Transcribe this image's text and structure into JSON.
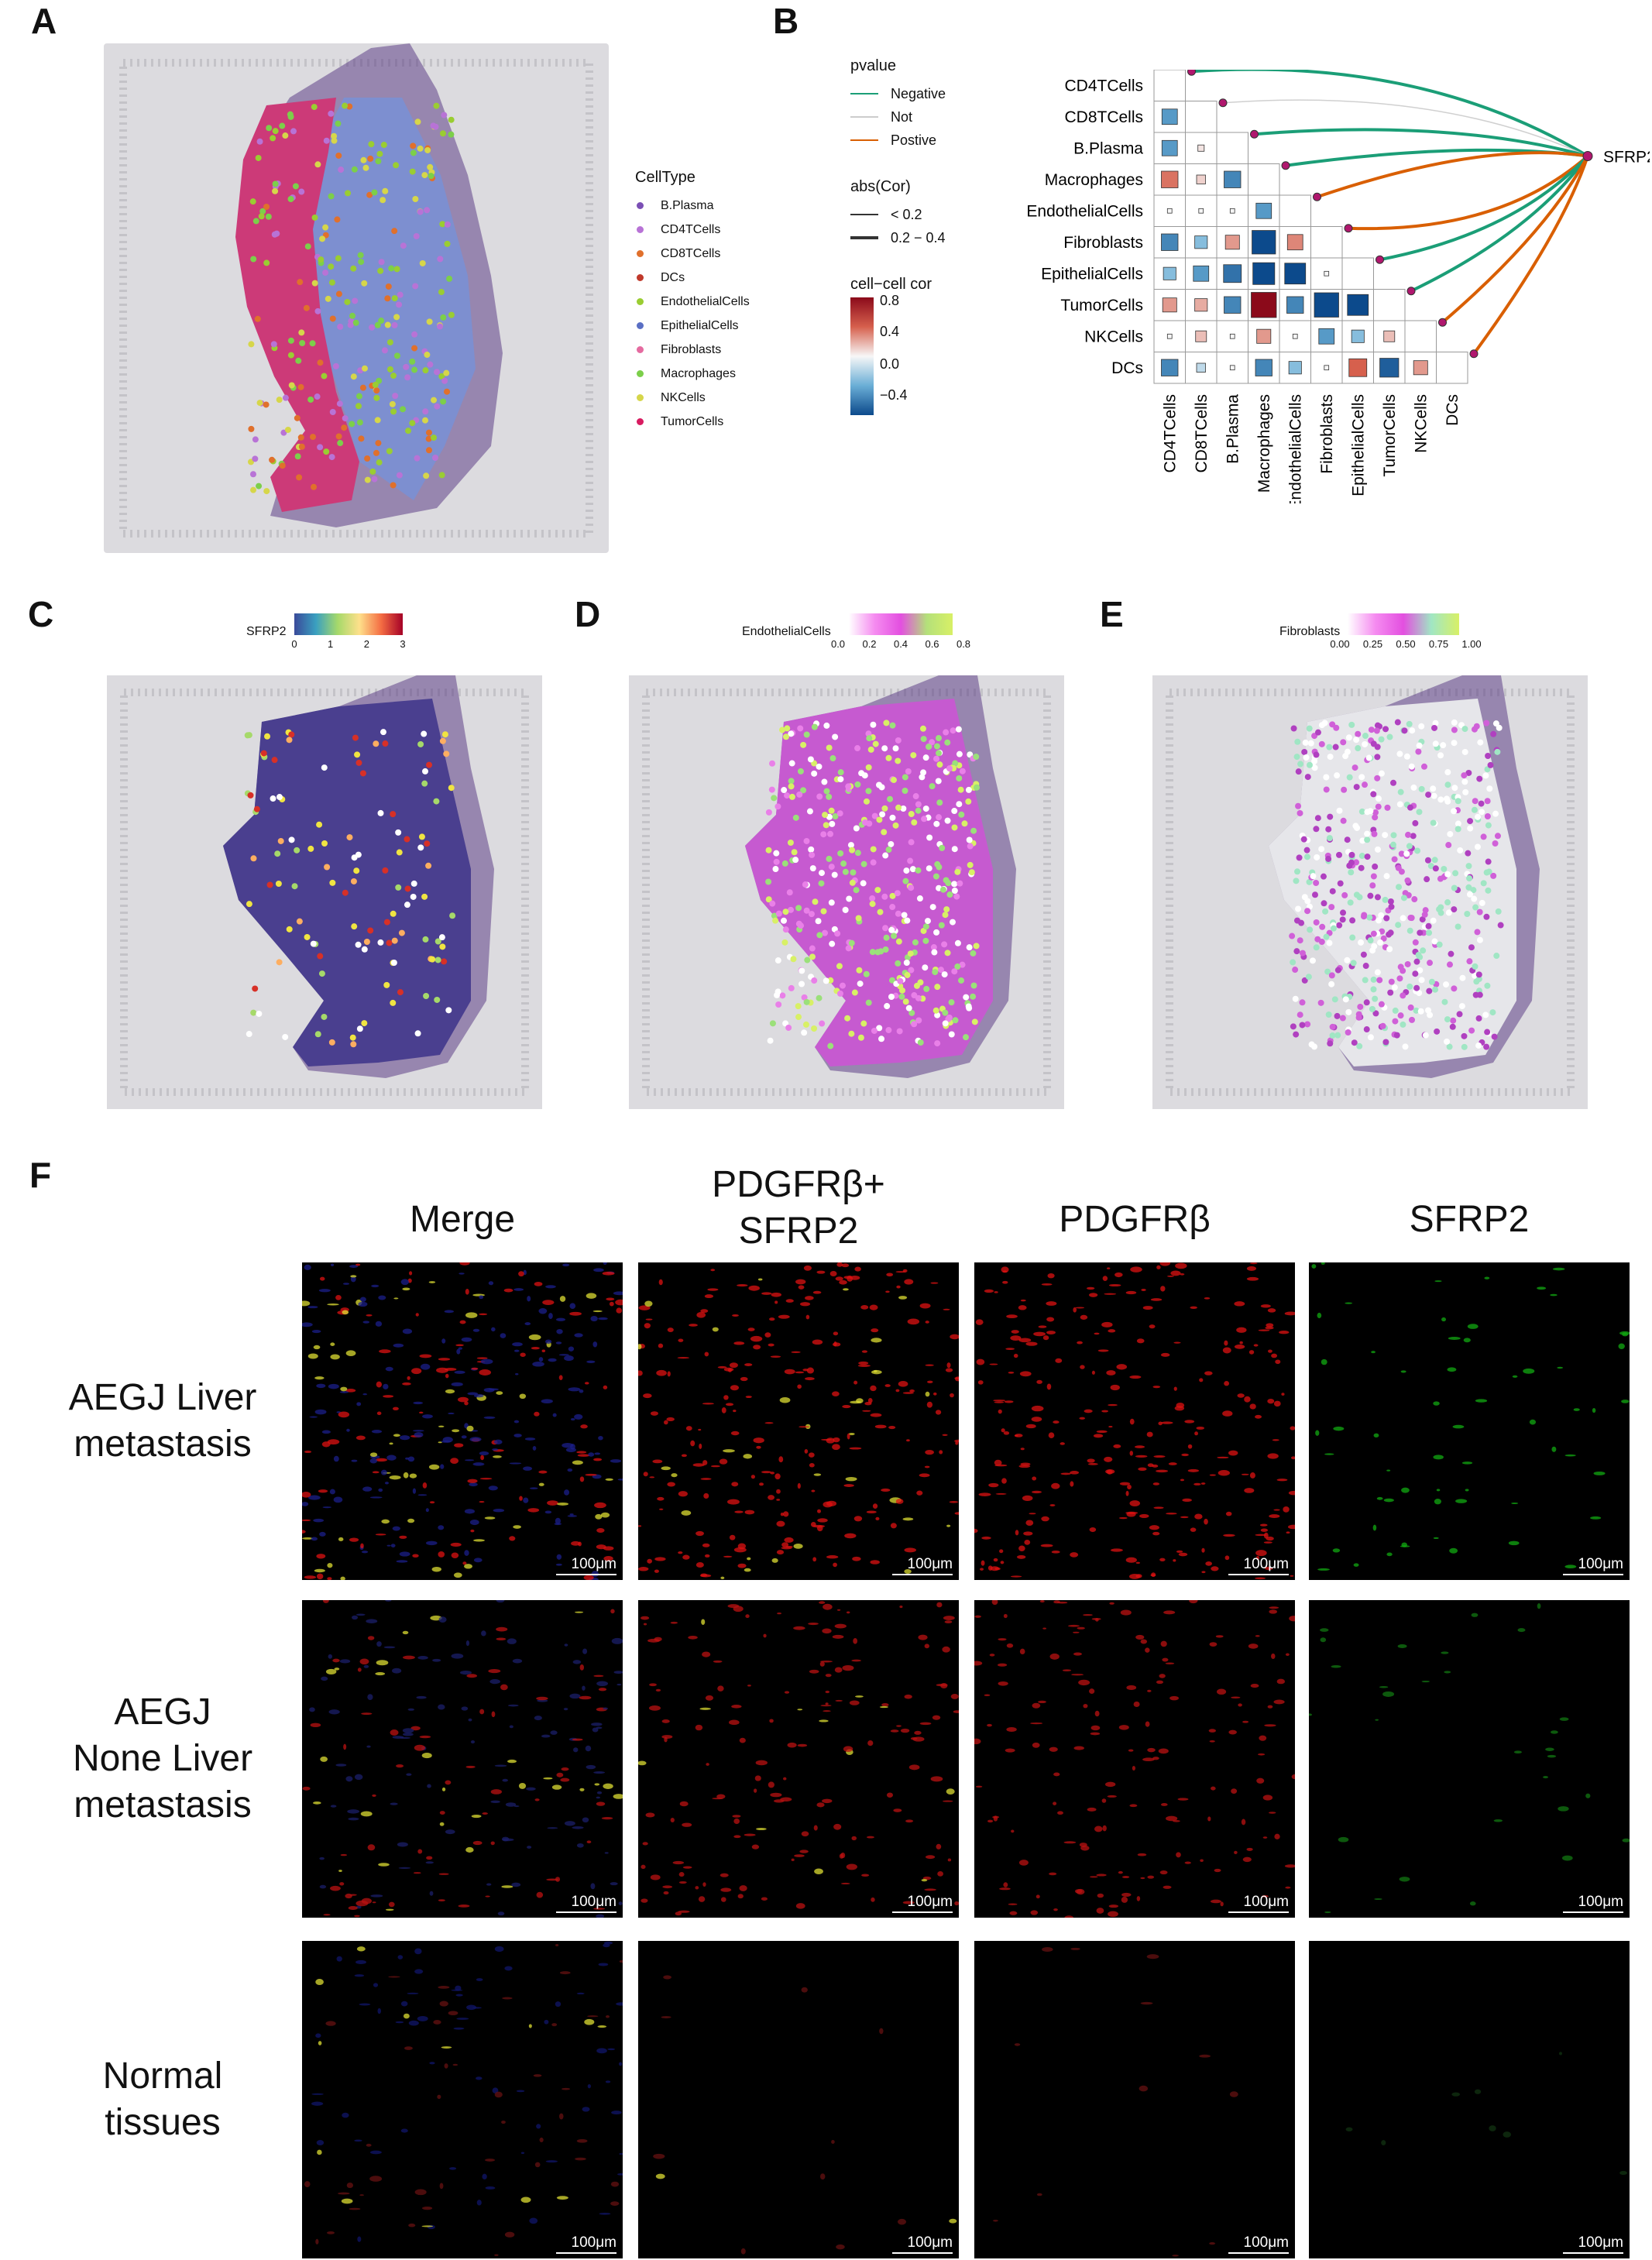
{
  "panels": {
    "A": "A",
    "B": "B",
    "C": "C",
    "D": "D",
    "E": "E",
    "F": "F"
  },
  "panel_a": {
    "legend_title": "CellType",
    "legend": [
      {
        "label": "B.Plasma",
        "color": "#7b4fb5"
      },
      {
        "label": "CD4TCells",
        "color": "#b873d6"
      },
      {
        "label": "CD8TCells",
        "color": "#e0702c"
      },
      {
        "label": "DCs",
        "color": "#c0392b"
      },
      {
        "label": "EndothelialCells",
        "color": "#9acd32"
      },
      {
        "label": "EpithelialCells",
        "color": "#5a6fc4"
      },
      {
        "label": "Fibroblasts",
        "color": "#e56ba0"
      },
      {
        "label": "Macrophages",
        "color": "#7ccf4a"
      },
      {
        "label": "NKCells",
        "color": "#d6d64a"
      },
      {
        "label": "TumorCells",
        "color": "#d81b60"
      }
    ]
  },
  "panel_b": {
    "legend_pvalue_title": "pvalue",
    "legend_pvalue": [
      {
        "label": "Negative",
        "color": "#1b9e77"
      },
      {
        "label": "Not",
        "color": "#cccccc"
      },
      {
        "label": "Postive",
        "color": "#d95f02"
      }
    ],
    "legend_abs_title": "abs(Cor)",
    "legend_abs": [
      "< 0.2",
      "0.2 − 0.4"
    ],
    "legend_cor_title": "cell−cell cor",
    "legend_cor_ticks": [
      "0.8",
      "0.4",
      "0.0",
      "−0.4"
    ],
    "gene": "SFRP2",
    "cells": [
      "CD4TCells",
      "CD8TCells",
      "B.Plasma",
      "Macrophages",
      "EndothelialCells",
      "Fibroblasts",
      "EpithelialCells",
      "TumorCells",
      "NKCells",
      "DCs"
    ]
  },
  "chart_data": {
    "type": "heatmap",
    "rows": [
      "CD4TCells",
      "CD8TCells",
      "B.Plasma",
      "Macrophages",
      "EndothelialCells",
      "Fibroblasts",
      "EpithelialCells",
      "TumorCells",
      "NKCells",
      "DCs"
    ],
    "columns": [
      "CD4TCells",
      "CD8TCells",
      "B.Plasma",
      "Macrophages",
      "EndothelialCells",
      "Fibroblasts",
      "EpithelialCells",
      "TumorCells",
      "NKCells",
      "DCs"
    ],
    "legend_title": "cell−cell cor",
    "scale_range": [
      -0.5,
      0.8
    ],
    "lower_triangle": [
      [],
      [
        -0.3
      ],
      [
        -0.3,
        0.05
      ],
      [
        0.35,
        0.1,
        -0.35
      ],
      [
        0.0,
        0.0,
        0.0,
        -0.3
      ],
      [
        -0.35,
        -0.2,
        0.25,
        -0.7,
        0.3
      ],
      [
        -0.2,
        -0.3,
        -0.4,
        -0.6,
        -0.55,
        0.0
      ],
      [
        0.25,
        0.2,
        -0.35,
        0.8,
        -0.35,
        -0.75,
        -0.55
      ],
      [
        0.0,
        0.15,
        0.0,
        0.25,
        0.0,
        -0.3,
        -0.2,
        0.15
      ],
      [
        -0.35,
        -0.1,
        0.0,
        -0.35,
        -0.2,
        0.0,
        0.4,
        -0.45,
        0.25
      ]
    ],
    "sfrp2_links": [
      {
        "cell": "CD4TCells",
        "pvalue": "Negative",
        "abs_cor": "0.2 − 0.4"
      },
      {
        "cell": "CD8TCells",
        "pvalue": "Not",
        "abs_cor": "< 0.2"
      },
      {
        "cell": "B.Plasma",
        "pvalue": "Negative",
        "abs_cor": "0.2 − 0.4"
      },
      {
        "cell": "Macrophages",
        "pvalue": "Negative",
        "abs_cor": "0.2 − 0.4"
      },
      {
        "cell": "EndothelialCells",
        "pvalue": "Postive",
        "abs_cor": "0.2 − 0.4"
      },
      {
        "cell": "Fibroblasts",
        "pvalue": "Postive",
        "abs_cor": "0.2 − 0.4"
      },
      {
        "cell": "EpithelialCells",
        "pvalue": "Negative",
        "abs_cor": "0.2 − 0.4"
      },
      {
        "cell": "TumorCells",
        "pvalue": "Negative",
        "abs_cor": "0.2 − 0.4"
      },
      {
        "cell": "NKCells",
        "pvalue": "Postive",
        "abs_cor": "0.2 − 0.4"
      },
      {
        "cell": "DCs",
        "pvalue": "Postive",
        "abs_cor": "0.2 − 0.4"
      }
    ]
  },
  "panel_c": {
    "title": "SFRP2",
    "ticks": [
      "0",
      "1",
      "2",
      "3"
    ]
  },
  "panel_d": {
    "title": "EndothelialCells",
    "ticks": [
      "0.0",
      "0.2",
      "0.4",
      "0.6",
      "0.8"
    ]
  },
  "panel_e": {
    "title": "Fibroblasts",
    "ticks": [
      "0.00",
      "0.25",
      "0.50",
      "0.75",
      "1.00"
    ]
  },
  "panel_f": {
    "columns": [
      "Merge",
      "PDGFRβ+\nSFRP2",
      "PDGFRβ",
      "SFRP2"
    ],
    "rows": [
      "AEGJ Liver\nmetastasis",
      "AEGJ\nNone Liver\nmetastasis",
      "Normal\ntissues"
    ],
    "scale_text": "100μm"
  }
}
